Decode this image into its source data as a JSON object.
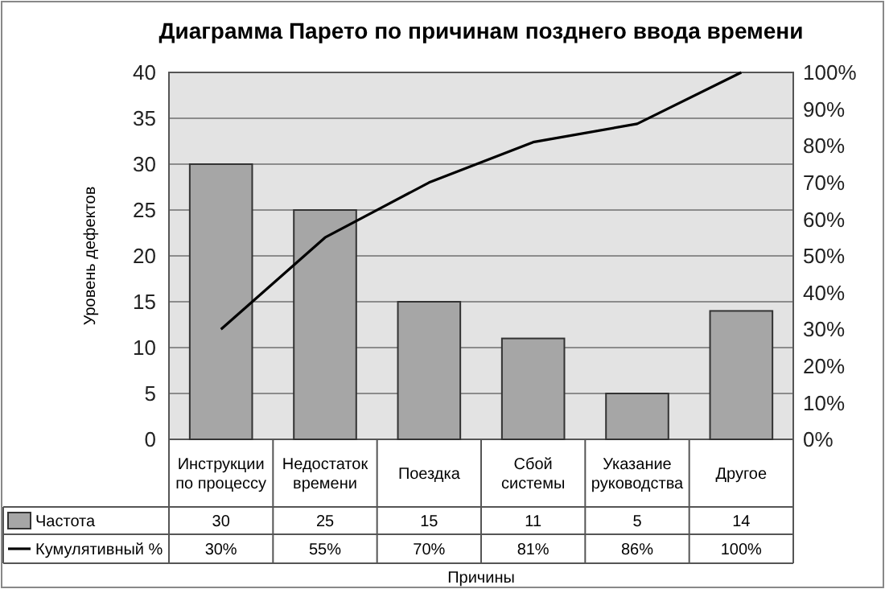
{
  "chart_data": {
    "type": "bar",
    "title": "Диаграмма Парето по причинам позднего ввода времени",
    "xlabel": "Причины",
    "ylabel": "Уровень дефектов",
    "categories": [
      "Инструкции по процессу",
      "Недостаток времени",
      "Поездка",
      "Сбой системы",
      "Указание руководства",
      "Другое"
    ],
    "series": [
      {
        "name": "Частота",
        "color": "#a6a6a6",
        "values": [
          30,
          25,
          15,
          11,
          5,
          14
        ],
        "value_labels": [
          "30",
          "25",
          "15",
          "11",
          "5",
          "14"
        ]
      },
      {
        "name": "Кумулятивный %",
        "type": "line",
        "axis": "y2",
        "color": "#000000",
        "values": [
          30,
          55,
          70,
          81,
          86,
          100
        ],
        "value_labels": [
          "30%",
          "55%",
          "70%",
          "81%",
          "86%",
          "100%"
        ]
      }
    ],
    "ylim": [
      0,
      40
    ],
    "yticks": [
      0,
      5,
      10,
      15,
      20,
      25,
      30,
      35,
      40
    ],
    "y2lim": [
      0,
      100
    ],
    "y2ticks": [
      {
        "value": 0,
        "label": "0%"
      },
      {
        "value": 10,
        "label": "10%"
      },
      {
        "value": 20,
        "label": "20%"
      },
      {
        "value": 30,
        "label": "30%"
      },
      {
        "value": 40,
        "label": "40%"
      },
      {
        "value": 50,
        "label": "50%"
      },
      {
        "value": 60,
        "label": "60%"
      },
      {
        "value": 70,
        "label": "70%"
      },
      {
        "value": 80,
        "label": "80%"
      },
      {
        "value": 90,
        "label": "90%"
      },
      {
        "value": 100,
        "label": "100%"
      }
    ],
    "grid": "y",
    "legend": "bottom left",
    "marker": "none",
    "line_style": "solid"
  }
}
